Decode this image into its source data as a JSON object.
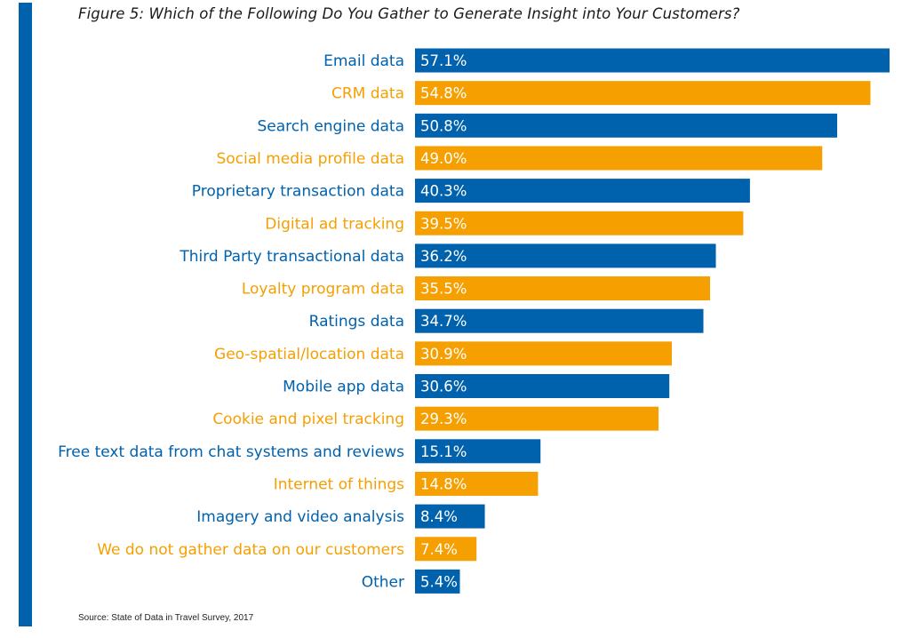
{
  "chart_data": {
    "type": "bar",
    "orientation": "horizontal",
    "title": "Figure 5: Which of the Following Do You Gather to Generate Insight into Your Customers?",
    "source": "Source: State of Data in Travel Survey, 2017",
    "categories": [
      "Email data",
      "CRM data",
      "Search engine data",
      "Social media profile data",
      "Proprietary transaction data",
      "Digital ad tracking",
      "Third Party transactional data",
      "Loyalty program data",
      "Ratings data",
      "Geo-spatial/location data",
      "Mobile app data",
      "Cookie and pixel tracking",
      "Free text data from chat systems and reviews",
      "Internet of things",
      "Imagery and video analysis",
      "We do not gather data on our customers",
      "Other"
    ],
    "values": [
      57.1,
      54.8,
      50.8,
      49.0,
      40.3,
      39.5,
      36.2,
      35.5,
      34.7,
      30.9,
      30.6,
      29.3,
      15.1,
      14.8,
      8.4,
      7.4,
      5.4
    ],
    "value_labels": [
      "57.1%",
      "54.8%",
      "50.8%",
      "49.0%",
      "40.3%",
      "39.5%",
      "36.2%",
      "35.5%",
      "34.7%",
      "30.9%",
      "30.6%",
      "29.3%",
      "15.1%",
      "14.8%",
      "8.4%",
      "7.4%",
      "5.4%"
    ],
    "colors": [
      "#0061ad",
      "#f59f00"
    ],
    "color_pattern": "alternating",
    "xlim": [
      0,
      57.1
    ],
    "grid": false,
    "legend": "none",
    "xlabel": "",
    "ylabel": ""
  }
}
